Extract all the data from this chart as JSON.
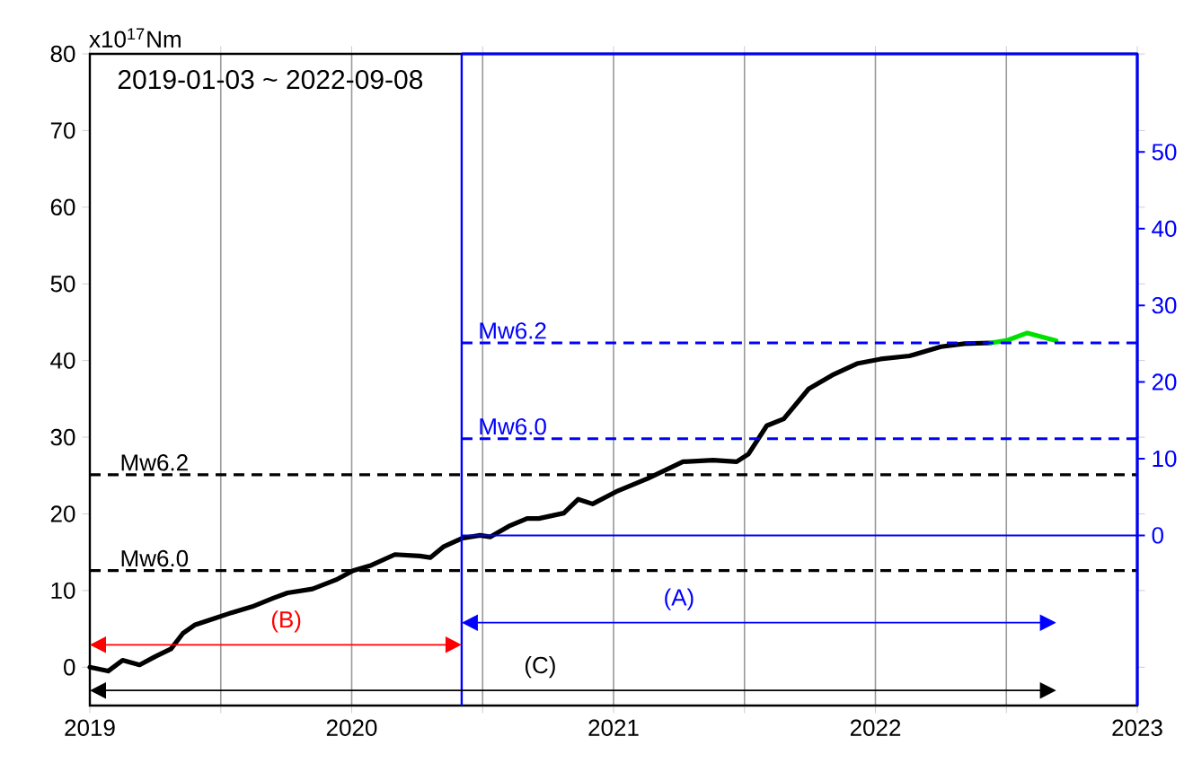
{
  "chart_data": {
    "type": "line",
    "ylabel": "x10$^{17}$Nm",
    "annotations": [
      "2019-01-03 ~ 2022-09-08",
      "(B)",
      "(A)",
      "(C)"
    ],
    "xlim": [
      2019,
      2023
    ],
    "xticks": [
      2019,
      {
        "value": 2019.5,
        "label": null
      },
      2020,
      {
        "value": 2020.5,
        "label": null
      },
      2021,
      {
        "value": 2021.5,
        "label": null
      },
      2022,
      {
        "value": 2022.5,
        "label": null
      },
      2023
    ],
    "ylim": [
      -5,
      80
    ],
    "yticks": [
      0,
      10,
      20,
      30,
      40,
      50,
      60,
      70,
      80
    ],
    "y2lim": [
      -22.2,
      62.8
    ],
    "y2ticks": [
      0,
      10,
      20,
      30,
      40,
      50
    ],
    "grid": "x",
    "marker": "none",
    "line_style": "solid",
    "series": [
      {
        "color": "#000000",
        "x": [
          2019.0,
          2019.07,
          2019.125,
          2019.19,
          2019.25,
          2019.31,
          2019.355,
          2019.4,
          2019.47,
          2019.54,
          2019.62,
          2019.7,
          2019.755,
          2019.85,
          2019.94,
          2020.005,
          2020.075,
          2020.165,
          2020.26,
          2020.3,
          2020.35,
          2020.42,
          2020.49,
          2020.53,
          2020.6,
          2020.67,
          2020.715,
          2020.81,
          2020.865,
          2020.92,
          2021.01,
          2021.13,
          2021.265,
          2021.38,
          2021.47,
          2021.515,
          2021.585,
          2021.65,
          2021.745,
          2021.835,
          2021.93,
          2022.02,
          2022.13,
          2022.25,
          2022.34,
          2022.44
        ],
        "values": [
          0,
          -0.5,
          0.9,
          0.3,
          1.4,
          2.4,
          4.4,
          5.5,
          6.3,
          7.1,
          7.9,
          9.0,
          9.7,
          10.2,
          11.4,
          12.6,
          13.3,
          14.7,
          14.5,
          14.3,
          15.7,
          16.8,
          17.2,
          17.0,
          18.4,
          19.4,
          19.4,
          20.1,
          21.9,
          21.3,
          22.9,
          24.6,
          26.8,
          27.0,
          26.8,
          27.8,
          31.5,
          32.4,
          36.3,
          38.1,
          39.6,
          40.2,
          40.6,
          41.8,
          42.2,
          42.3
        ]
      },
      {
        "color": "#00e000",
        "x": [
          2022.44,
          2022.5,
          2022.58,
          2022.69
        ],
        "values": [
          42.3,
          42.6,
          43.6,
          42.6
        ]
      }
    ],
    "ref_lines": [
      {
        "axis": "y",
        "value": 12.6,
        "label": "Mw6.0",
        "color": "#000000",
        "line_style": "dashed"
      },
      {
        "axis": "y",
        "value": 25.1,
        "label": "Mw6.2",
        "color": "#000000",
        "line_style": "dashed"
      },
      {
        "axis": "x",
        "value": 2020.42,
        "color": "#0000ff",
        "line_style": "solid"
      },
      {
        "axis": "y2",
        "value": 0,
        "color": "#0000ff",
        "line_style": "solid"
      },
      {
        "axis": "y2",
        "value": 12.6,
        "label": "Mw6.0",
        "color": "#0000ff",
        "line_style": "dashed"
      },
      {
        "axis": "y2",
        "value": 25.1,
        "label": "Mw6.2",
        "color": "#0000ff",
        "line_style": "dashed"
      }
    ]
  }
}
